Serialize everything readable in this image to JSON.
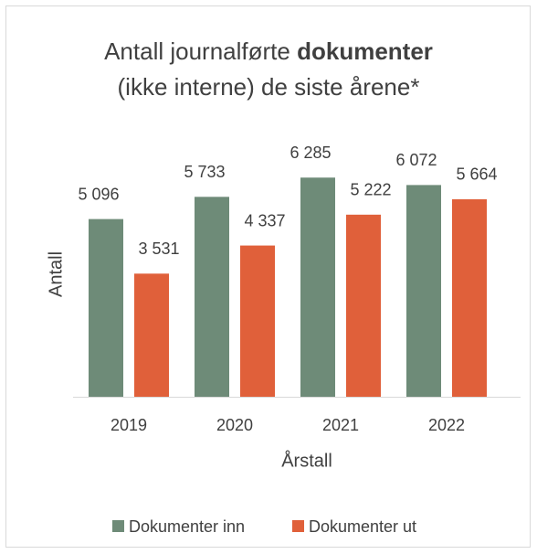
{
  "chart_data": {
    "type": "bar",
    "title": [
      "Antall journalførte",
      "dokumenter",
      "(ikke interne) de siste årene*"
    ],
    "y_label": "Antall",
    "x_label": "Årstall",
    "categories": [
      "2019",
      "2020",
      "2021",
      "2022"
    ],
    "series": [
      {
        "name": "Dokumenter inn",
        "color": "#6e8b78",
        "values": [
          5096,
          5733,
          6285,
          6072
        ],
        "value_labels": [
          "5 096",
          "5 733",
          "6 285",
          "6 072"
        ]
      },
      {
        "name": "Dokumenter ut",
        "color": "#e0603a",
        "values": [
          3531,
          4337,
          5222,
          5664
        ],
        "value_labels": [
          "3 531",
          "4 337",
          "5 222",
          "5 664"
        ]
      }
    ],
    "ylim": [
      0,
      7000
    ],
    "legend": "bottom"
  }
}
